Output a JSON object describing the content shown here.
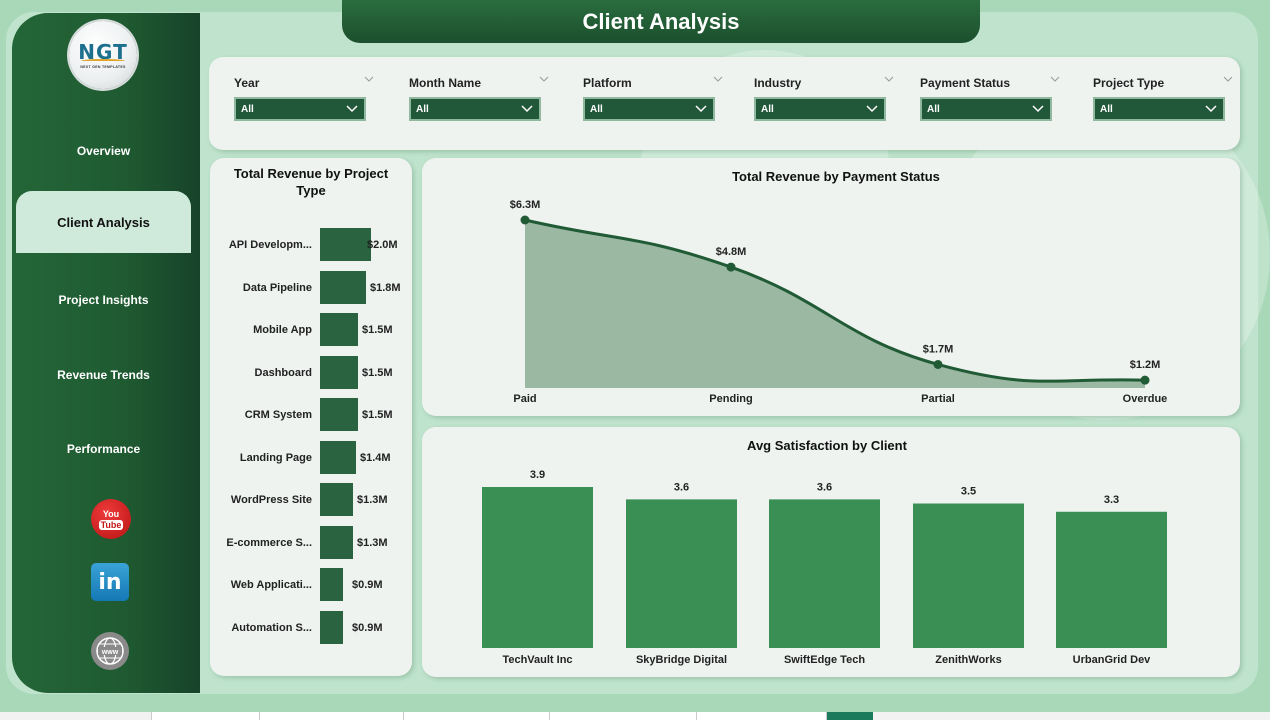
{
  "app": {
    "title": "Client Analysis",
    "logo": {
      "mark": "NGT",
      "subtitle": "NEXT GEN TEMPLATES"
    }
  },
  "sidebar": {
    "items": [
      {
        "label": "Overview",
        "active": false
      },
      {
        "label": "Client Analysis",
        "active": true
      },
      {
        "label": "Project Insights",
        "active": false
      },
      {
        "label": "Revenue Trends",
        "active": false
      },
      {
        "label": "Performance",
        "active": false
      }
    ],
    "social": [
      {
        "name": "youtube-icon",
        "text_top": "You",
        "text_bottom": "Tube"
      },
      {
        "name": "linkedin-icon",
        "text": "in"
      },
      {
        "name": "website-icon",
        "text": "www"
      }
    ]
  },
  "filters": [
    {
      "label": "Year",
      "value": "All"
    },
    {
      "label": "Month Name",
      "value": "All"
    },
    {
      "label": "Platform",
      "value": "All"
    },
    {
      "label": "Industry",
      "value": "All"
    },
    {
      "label": "Payment Status",
      "value": "All"
    },
    {
      "label": "Project Type",
      "value": "All"
    }
  ],
  "colors": {
    "primary_dark": "#1f5a31",
    "bar_dark": "#2a6340",
    "bar_satisfaction": "#3a8f54",
    "area_fill": "#9bb8a3",
    "line": "#215b35",
    "panel_bg": "#eef3f0",
    "page_bg": "#a9d8b8"
  },
  "chart_data": [
    {
      "type": "bar",
      "orientation": "horizontal",
      "title": "Total Revenue by Project Type",
      "categories": [
        "API Developm...",
        "Data Pipeline",
        "Mobile App",
        "Dashboard",
        "CRM System",
        "Landing Page",
        "WordPress Site",
        "E-commerce S...",
        "Web Applicati...",
        "Automation S..."
      ],
      "values": [
        2.0,
        1.8,
        1.5,
        1.5,
        1.5,
        1.4,
        1.3,
        1.3,
        0.9,
        0.9
      ],
      "value_labels": [
        "$2.0M",
        "$1.8M",
        "$1.5M",
        "$1.5M",
        "$1.5M",
        "$1.4M",
        "$1.3M",
        "$1.3M",
        "$0.9M",
        "$0.9M"
      ],
      "unit": "$M"
    },
    {
      "type": "area",
      "title": "Total Revenue by Payment Status",
      "categories": [
        "Paid",
        "Pending",
        "Partial",
        "Overdue"
      ],
      "values": [
        6.3,
        4.8,
        1.7,
        1.2
      ],
      "value_labels": [
        "$6.3M",
        "$4.8M",
        "$1.7M",
        "$1.2M"
      ],
      "unit": "$M"
    },
    {
      "type": "bar",
      "orientation": "vertical",
      "title": "Avg Satisfaction by Client",
      "categories": [
        "TechVault Inc",
        "SkyBridge Digital",
        "SwiftEdge Tech",
        "ZenithWorks",
        "UrbanGrid Dev"
      ],
      "values": [
        3.9,
        3.6,
        3.6,
        3.5,
        3.3
      ],
      "value_labels": [
        "3.9",
        "3.6",
        "3.6",
        "3.5",
        "3.3"
      ]
    }
  ]
}
